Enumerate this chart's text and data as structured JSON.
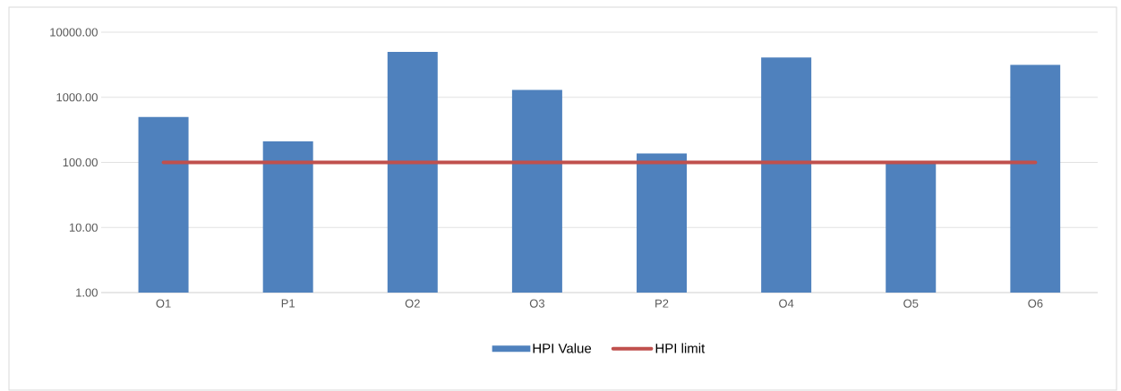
{
  "chart_data": {
    "type": "bar",
    "categories": [
      "O1",
      "P1",
      "O2",
      "O3",
      "P2",
      "O4",
      "O5",
      "O6"
    ],
    "series": [
      {
        "name": "HPI Value",
        "color": "#4f81bd",
        "values": [
          500,
          210,
          5000,
          1300,
          137,
          4100,
          95,
          3150
        ]
      },
      {
        "name": "HPI limit",
        "type": "line",
        "color": "#c0504d",
        "values": [
          100,
          100,
          100,
          100,
          100,
          100,
          100,
          100
        ]
      }
    ],
    "log": true,
    "ylim": [
      1,
      10000
    ],
    "yticks": [
      {
        "value": 1,
        "label": "1.00"
      },
      {
        "value": 10,
        "label": "10.00"
      },
      {
        "value": 100,
        "label": "100.00"
      },
      {
        "value": 1000,
        "label": "1000.00"
      },
      {
        "value": 10000,
        "label": "10000.00"
      }
    ],
    "grid": "y",
    "legend": "bottom"
  }
}
